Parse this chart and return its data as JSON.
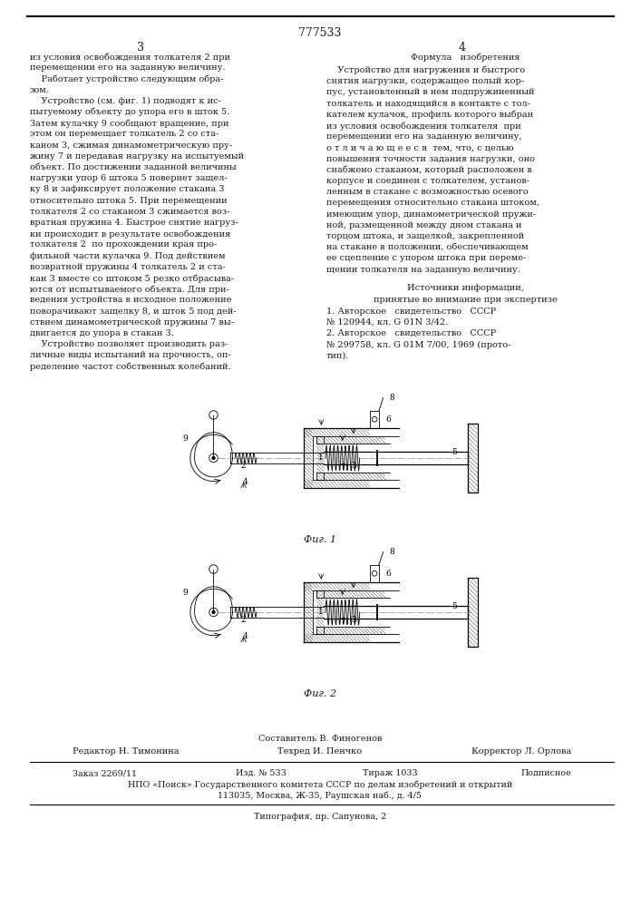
{
  "page_number": "777533",
  "left_col_number": "3",
  "right_col_number": "4",
  "bg_color": "#ffffff",
  "text_color": "#1a1a1a",
  "left_text": [
    "из условия освобождения толкателя 2 при",
    "перемещении его на заданную величину.",
    "    Работает устройство следующим обра-",
    "зом.",
    "    Устройство (см. фиг. 1) подводят к ис-",
    "пытуемому объекту до упора его в шток 5.",
    "Затем кулачку 9 сообщают вращение, при",
    "этом он перемещает толкатель 2 со ста-",
    "каном 3, сжимая динамометрическую пру-",
    "жину 7 и передавая нагрузку на испытуемый",
    "объект. По достижении заданной величины",
    "нагрузки упор 6 штока 5 повернет защел-",
    "ку 8 и зафиксирует положение стакана 3",
    "относительно штока 5. При перемещении",
    "толкателя 2 со стаканом 3 сжимается воз-",
    "вратная пружина 4. Быстрое снятие нагруз-",
    "ки происходит в результате освобождения",
    "толкателя 2  по прохождении края про-",
    "фильной части кулачка 9. Под действием",
    "возвратной пружины 4 толкатель 2 и ста-",
    "кан 3 вместе со штоком 5 резко отбрасыва-",
    "ются от испытываемого объекта. Для при-",
    "ведения устройства в исходное положение",
    "поворачивают защелку 8, и шток 5 под дей-",
    "ствием динамометрической пружины 7 вы-",
    "двигается до упора в стакан 3.",
    "    Устройство позволяет производить раз-",
    "личные виды испытаний на прочность, оп-",
    "ределение частот собственных колебаний."
  ],
  "right_col_title": "Формула   изобретения",
  "right_text": [
    "    Устройство для нагружения и быстрого",
    "снятия нагрузки, содержащее полый кор-",
    "пус, установленный в нем подпружиненный",
    "толкатель и находящийся в контакте с тол-",
    "кателем кулачок, профиль которого выбран",
    "из условия освобождения толкателя  при",
    "перемещении его на заданную величину,",
    "о т л и ч а ю щ е е с я  тем, что, с целью",
    "повышения точности задания нагрузки, оно",
    "снабжено стаканом, который расположен в",
    "корпусе и соединен с толкателем, установ-",
    "ленным в стакане с возможностью осевого",
    "перемещения относительно стакана штоком,",
    "имеющим упор, динамометрической пружи-",
    "ной, размещенной между дном стакана и",
    "торцом штока, и защелкой, закрепленной",
    "на стакане в положении, обеспечивающем",
    "ее сцепление с упором штока при переме-",
    "щении толкателя на заданную величину."
  ],
  "sources_title": "Источники информации,",
  "sources_subtitle": "принятые во внимание при экспертизе",
  "sources": [
    "1. Авторское   свидетельство   СССР",
    "№ 120944, кл. G 01N 3/42.",
    "2. Авторское   свидетельство   СССР",
    "№ 299758, кл. G 01M 7/00, 1969 (прото-",
    "тип)."
  ],
  "fig1_caption": "Фиг. 1",
  "fig2_caption": "Фиг. 2",
  "footer_composer": "Составитель В. Финогенов",
  "footer_editor": "Редактор Н. Тимонина",
  "footer_tech": "Техред И. Пенчко",
  "footer_corrector": "Корректор Л. Орлова",
  "footer_order": "Заказ 2269/11",
  "footer_issue": "Изд. № 533",
  "footer_print": "Тираж 1033",
  "footer_sub": "Подписное",
  "footer_npo": "НПО «Поиск» Государственного комитета СССР по делам изобретений и открытий",
  "footer_address": "113035, Москва, Ж-35, Раушская наб., д. 4/5",
  "footer_typo": "Типография, пр. Сапунова, 2"
}
